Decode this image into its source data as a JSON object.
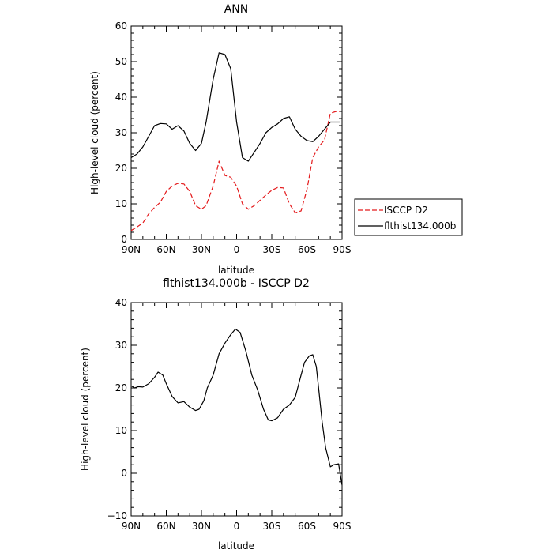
{
  "chart_data": [
    {
      "type": "line",
      "title": "ANN",
      "xlabel": "latitude",
      "ylabel": "High-level cloud  (percent)",
      "xlim": [
        90,
        -90
      ],
      "ylim": [
        0,
        60
      ],
      "x_tick_labels": [
        "90N",
        "60N",
        "30N",
        "0",
        "30S",
        "60S",
        "90S"
      ],
      "y_tick_labels": [
        "0",
        "10",
        "20",
        "30",
        "40",
        "50",
        "60"
      ],
      "grid": false,
      "legend_position": "right",
      "series": [
        {
          "name": "ISCCP D2",
          "color": "#e41a1c",
          "dash": "dashed",
          "x": [
            90,
            85,
            80,
            75,
            70,
            65,
            60,
            55,
            50,
            45,
            40,
            35,
            30,
            26,
            20,
            15,
            10,
            5,
            0,
            -5,
            -10,
            -15,
            -20,
            -25,
            -30,
            -35,
            -40,
            -45,
            -50,
            -55,
            -60,
            -65,
            -70,
            -75,
            -80,
            -85,
            -88
          ],
          "y": [
            2.5,
            3.5,
            4.6,
            7.2,
            9,
            10.5,
            13.5,
            15,
            15.8,
            15.6,
            13.5,
            9.5,
            8.5,
            9.5,
            15,
            22,
            18,
            17.5,
            15,
            10,
            8.5,
            9.5,
            11,
            12.5,
            13.8,
            14.6,
            14.5,
            10,
            7.5,
            8,
            14,
            23,
            26,
            28,
            35.5,
            36,
            36
          ]
        },
        {
          "name": "flthist134.000b",
          "color": "#000000",
          "dash": "solid",
          "x": [
            90,
            85,
            80,
            75,
            70,
            65,
            60,
            55,
            50,
            45,
            40,
            35,
            30,
            26,
            20,
            15,
            10,
            5,
            0,
            -5,
            -10,
            -15,
            -20,
            -25,
            -30,
            -35,
            -40,
            -45,
            -50,
            -55,
            -60,
            -65,
            -70,
            -75,
            -80,
            -85,
            -88
          ],
          "y": [
            23,
            24,
            26,
            29,
            32,
            32.6,
            32.5,
            31,
            32,
            30.5,
            27,
            25,
            27,
            33,
            45,
            52.5,
            52,
            48,
            33,
            23,
            22,
            24.5,
            27,
            30,
            31.5,
            32.5,
            34,
            34.5,
            31,
            29,
            27.8,
            27.5,
            29,
            31,
            33,
            33,
            33
          ]
        }
      ]
    },
    {
      "type": "line",
      "title": "flthist134.000b - ISCCP D2",
      "xlabel": "latitude",
      "ylabel": "High-level cloud  (percent)",
      "xlim": [
        90,
        -90
      ],
      "ylim": [
        -10,
        40
      ],
      "x_tick_labels": [
        "90N",
        "60N",
        "30N",
        "0",
        "30S",
        "60S",
        "90S"
      ],
      "y_tick_labels": [
        "−10",
        "0",
        "10",
        "20",
        "30",
        "40"
      ],
      "grid": false,
      "series": [
        {
          "color": "#000000",
          "dash": "solid",
          "x": [
            90,
            87,
            84,
            80,
            75,
            70,
            67,
            63,
            60,
            55,
            50,
            45,
            40,
            35,
            32,
            28,
            25,
            20,
            15,
            10,
            5,
            1,
            -3,
            -8,
            -13,
            -18,
            -23,
            -27,
            -30,
            -35,
            -40,
            -45,
            -50,
            -55,
            -58,
            -62,
            -65,
            -68,
            -70,
            -73,
            -76,
            -80,
            -83,
            -87,
            -90
          ],
          "y": [
            20.5,
            20,
            20.3,
            20.2,
            21,
            22.5,
            23.7,
            23,
            21,
            18,
            16.5,
            16.8,
            15.5,
            14.7,
            15,
            17,
            20,
            23,
            28,
            30.5,
            32.5,
            33.8,
            33,
            28.5,
            23,
            19.5,
            15,
            12.5,
            12.3,
            13,
            15,
            16,
            17.8,
            23,
            26,
            27.5,
            27.8,
            25,
            20,
            12,
            6,
            1.5,
            2,
            2.2,
            -2.8
          ]
        }
      ]
    }
  ]
}
